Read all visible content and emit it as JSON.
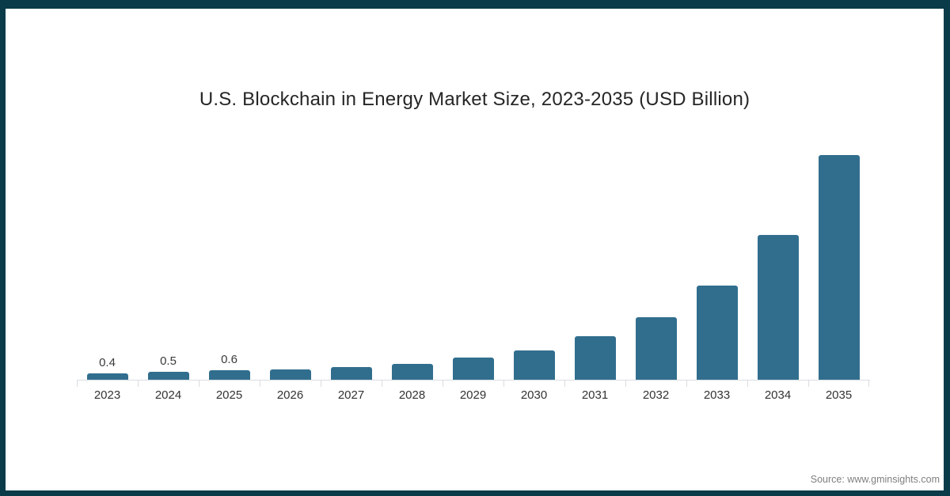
{
  "footer": {
    "source": "Source: www.gminsights.com"
  },
  "colors": {
    "frame": "#093b49",
    "bar": "#316e8e",
    "axis": "#d9dde2",
    "title_text": "#262626",
    "axis_label": "#333333",
    "data_label": "#3a3a3a",
    "source_text": "#7f7f7f"
  },
  "chart_data": {
    "type": "bar",
    "title": "U.S. Blockchain in Energy Market Size, 2023-2035 (USD Billion)",
    "categories": [
      "2023",
      "2024",
      "2025",
      "2026",
      "2027",
      "2028",
      "2029",
      "2030",
      "2031",
      "2032",
      "2033",
      "2034",
      "2035"
    ],
    "values": [
      0.4,
      0.5,
      0.6,
      0.7,
      0.9,
      1.1,
      1.6,
      2.2,
      3.3,
      4.8,
      7.3,
      11.3,
      17.6
    ],
    "bar_labels": [
      "0.4",
      "0.5",
      "0.6",
      null,
      null,
      null,
      null,
      null,
      null,
      null,
      null,
      null,
      null
    ],
    "xlabel": "",
    "ylabel": "",
    "ylim": [
      0,
      18
    ],
    "grid": false,
    "legend": false,
    "legend_position": "none"
  }
}
